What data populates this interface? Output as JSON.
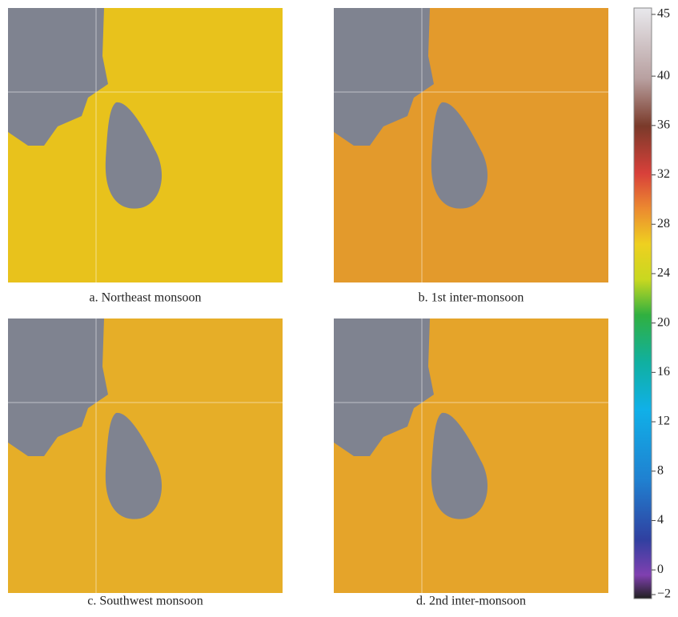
{
  "panels": [
    {
      "caption": "a. Northeast monsoon",
      "sea": "#e8c21c"
    },
    {
      "caption": "b. 1st inter-monsoon",
      "sea": "#e39a2c"
    },
    {
      "caption": "c. Southwest monsoon",
      "sea": "#e6ae28"
    },
    {
      "caption": "d. 2nd inter-monsoon",
      "sea": "#e5a42a"
    }
  ],
  "colorbar": {
    "range": [
      -2,
      45
    ],
    "ticks": [
      45,
      40,
      36,
      32,
      28,
      24,
      20,
      16,
      12,
      8,
      4,
      0,
      {
        "value": -2,
        "label": "−2"
      }
    ]
  }
}
